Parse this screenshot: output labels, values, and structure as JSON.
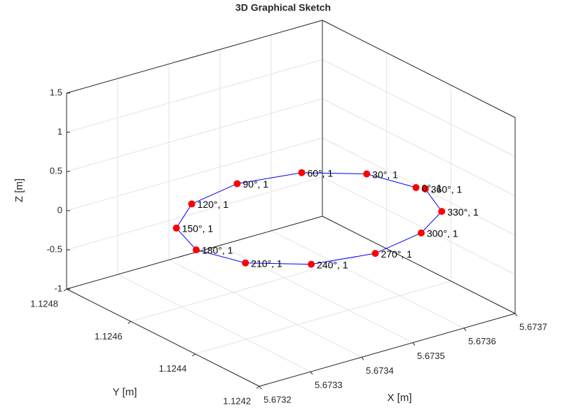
{
  "chart_data": {
    "type": "scatter3d",
    "title": "3D Graphical Sketch",
    "xlabel": "X [m]",
    "ylabel": "Y [m]",
    "zlabel": "Z [m]",
    "x": [
      5.673694,
      5.673666,
      5.673588,
      5.67348,
      5.673373,
      5.673294,
      5.673265,
      5.673294,
      5.673373,
      5.67348,
      5.673588,
      5.673667,
      5.673702
    ],
    "y": [
      1.124499,
      1.124608,
      1.124686,
      1.124715,
      1.124686,
      1.124608,
      1.1245,
      1.124393,
      1.124314,
      1.124285,
      1.124314,
      1.124376,
      1.124483
    ],
    "z": [
      0,
      0,
      0,
      0,
      0,
      0,
      0,
      0,
      0,
      0,
      0,
      0,
      0
    ],
    "labels": [
      "0°, 1",
      "30°, 1",
      "60°, 1",
      "90°, 1",
      "120°, 1",
      "150°, 1",
      "180°, 1",
      "210°, 1",
      "240°, 1",
      "270°, 1",
      "300°, 1",
      "330°, 1",
      "360°, 1"
    ],
    "xlim": [
      5.6732,
      5.6737
    ],
    "xticks": [
      5.6732,
      5.6733,
      5.6734,
      5.6735,
      5.6736,
      5.6737
    ],
    "ylim": [
      1.1242,
      1.1248
    ],
    "yticks": [
      1.1242,
      1.1244,
      1.1246,
      1.1248
    ],
    "zlim": [
      -1,
      1.5
    ],
    "zticks": [
      -1,
      -0.5,
      0,
      0.5,
      1,
      1.5
    ],
    "grid": true,
    "marker_color": "#ff0000",
    "line_color": "#0000ff"
  }
}
